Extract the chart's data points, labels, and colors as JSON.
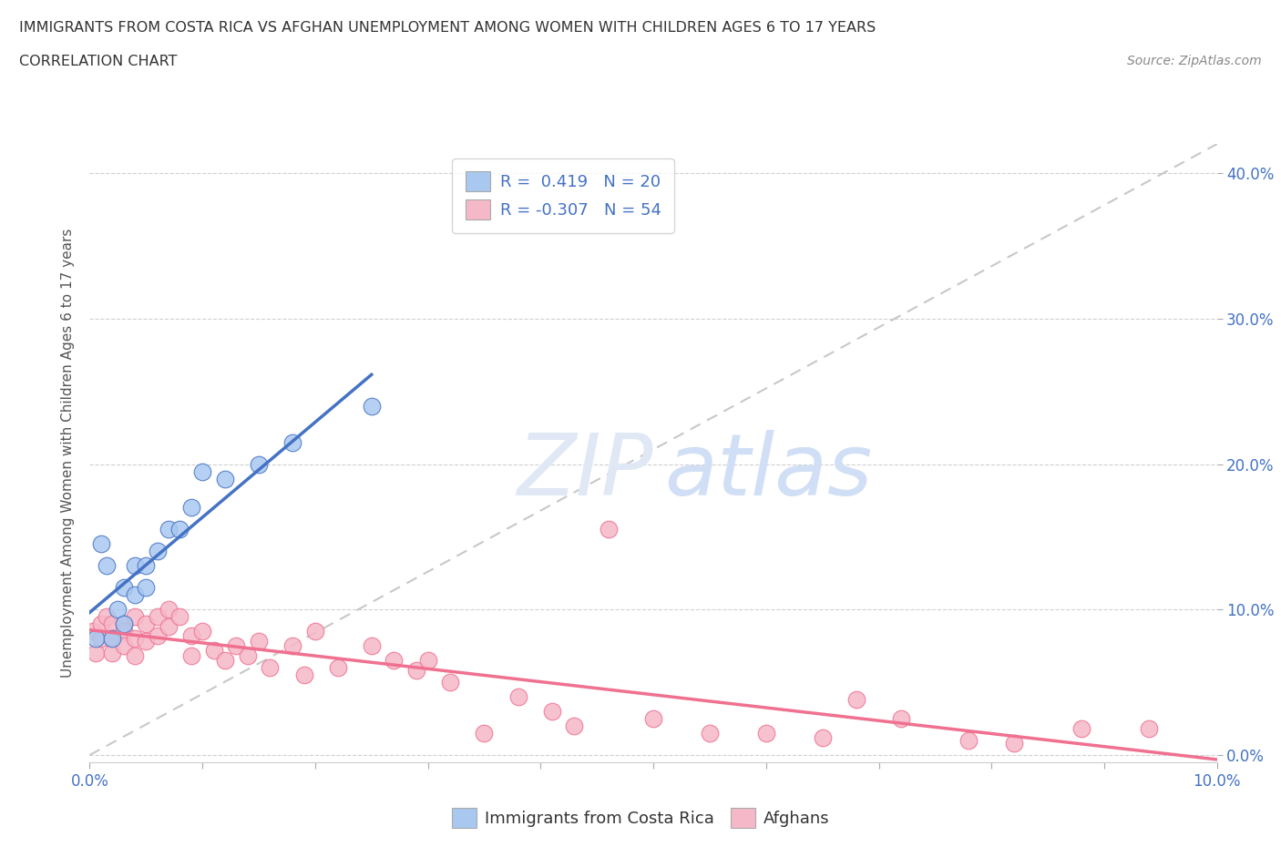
{
  "title": "IMMIGRANTS FROM COSTA RICA VS AFGHAN UNEMPLOYMENT AMONG WOMEN WITH CHILDREN AGES 6 TO 17 YEARS",
  "subtitle": "CORRELATION CHART",
  "source": "Source: ZipAtlas.com",
  "ylabel": "Unemployment Among Women with Children Ages 6 to 17 years",
  "color_blue": "#a8c8f0",
  "color_pink": "#f5b8c8",
  "color_blue_line": "#4472c4",
  "color_pink_line": "#f07090",
  "color_diag": "#c8c8c8",
  "xlim": [
    0.0,
    0.1
  ],
  "ylim": [
    -0.005,
    0.42
  ],
  "xticks": [
    0.0,
    0.01,
    0.02,
    0.03,
    0.04,
    0.05,
    0.06,
    0.07,
    0.08,
    0.09,
    0.1
  ],
  "yticks": [
    0.0,
    0.1,
    0.2,
    0.3,
    0.4
  ],
  "blue_x": [
    0.0005,
    0.001,
    0.0015,
    0.002,
    0.0025,
    0.003,
    0.003,
    0.004,
    0.004,
    0.005,
    0.005,
    0.006,
    0.007,
    0.008,
    0.009,
    0.01,
    0.012,
    0.015,
    0.018,
    0.025
  ],
  "blue_y": [
    0.08,
    0.145,
    0.13,
    0.08,
    0.1,
    0.09,
    0.115,
    0.11,
    0.13,
    0.115,
    0.13,
    0.14,
    0.155,
    0.155,
    0.17,
    0.195,
    0.19,
    0.2,
    0.215,
    0.24
  ],
  "pink_x": [
    0.0003,
    0.0005,
    0.001,
    0.001,
    0.0015,
    0.002,
    0.002,
    0.002,
    0.003,
    0.003,
    0.003,
    0.004,
    0.004,
    0.004,
    0.005,
    0.005,
    0.006,
    0.006,
    0.007,
    0.007,
    0.008,
    0.009,
    0.009,
    0.01,
    0.011,
    0.012,
    0.013,
    0.014,
    0.015,
    0.016,
    0.018,
    0.019,
    0.02,
    0.022,
    0.025,
    0.027,
    0.029,
    0.03,
    0.032,
    0.035,
    0.038,
    0.041,
    0.043,
    0.046,
    0.05,
    0.055,
    0.06,
    0.065,
    0.068,
    0.072,
    0.078,
    0.082,
    0.088,
    0.094
  ],
  "pink_y": [
    0.085,
    0.07,
    0.09,
    0.08,
    0.095,
    0.09,
    0.08,
    0.07,
    0.09,
    0.085,
    0.075,
    0.095,
    0.08,
    0.068,
    0.09,
    0.078,
    0.095,
    0.082,
    0.1,
    0.088,
    0.095,
    0.082,
    0.068,
    0.085,
    0.072,
    0.065,
    0.075,
    0.068,
    0.078,
    0.06,
    0.075,
    0.055,
    0.085,
    0.06,
    0.075,
    0.065,
    0.058,
    0.065,
    0.05,
    0.015,
    0.04,
    0.03,
    0.02,
    0.155,
    0.025,
    0.015,
    0.015,
    0.012,
    0.038,
    0.025,
    0.01,
    0.008,
    0.018,
    0.018
  ],
  "blue_line_x": [
    0.0,
    0.025
  ],
  "blue_line_y_start": 0.065,
  "pink_line_x": [
    0.0,
    0.1
  ],
  "pink_line_y_start": 0.092,
  "pink_line_y_end": 0.018
}
